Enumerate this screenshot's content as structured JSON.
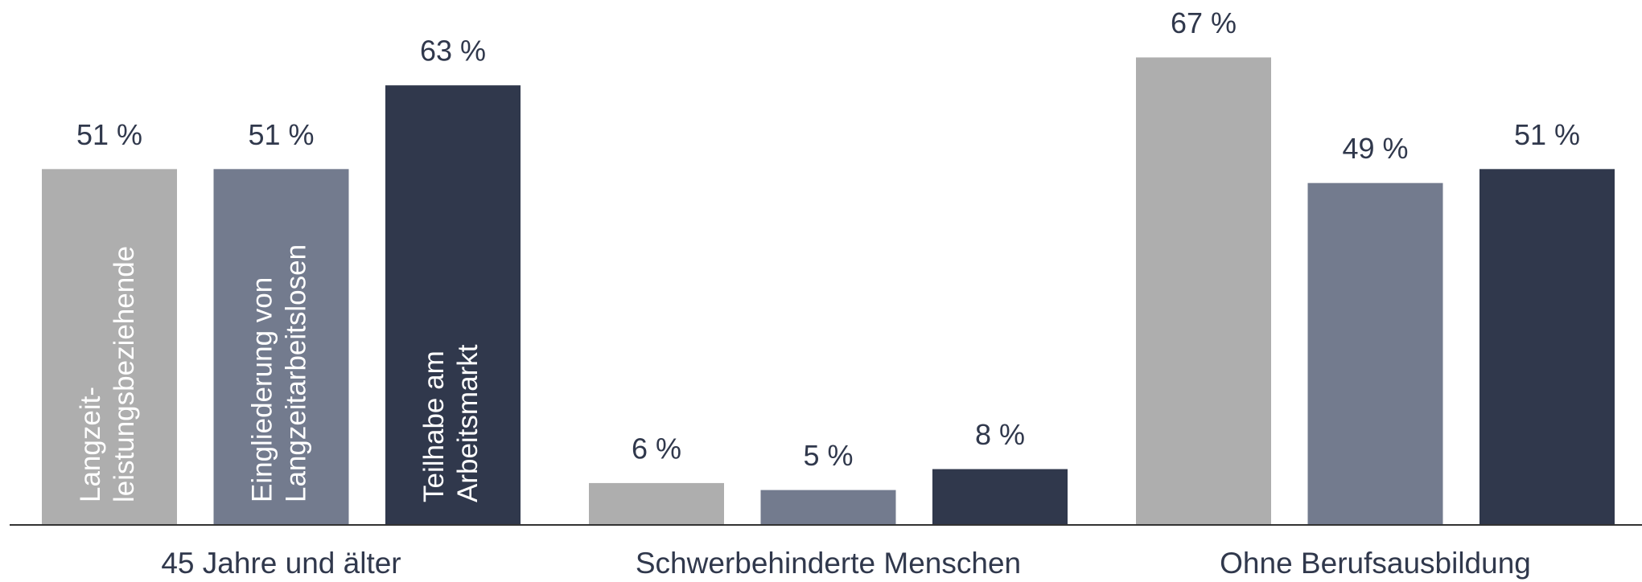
{
  "chart_data": {
    "type": "bar",
    "categories": [
      "45 Jahre und älter",
      "Schwerbehinderte Menschen",
      "Ohne Berufsausbildung"
    ],
    "series": [
      {
        "name": "Langzeit-\nleistungsbeziehende",
        "color": "#aeaeae",
        "values": [
          51,
          6,
          67
        ],
        "value_labels": [
          "51 %",
          "6 %",
          "67 %"
        ]
      },
      {
        "name": "Eingliederung von\nLangzeitarbeitslosen",
        "color": "#737b8e",
        "values": [
          51,
          5,
          49
        ],
        "value_labels": [
          "51 %",
          "5 %",
          "49 %"
        ]
      },
      {
        "name": "Teilhabe am\nArbeitsmarkt",
        "color": "#30384c",
        "values": [
          63,
          8,
          51
        ],
        "value_labels": [
          "63 %",
          "8 %",
          "51 %"
        ]
      }
    ]
  }
}
